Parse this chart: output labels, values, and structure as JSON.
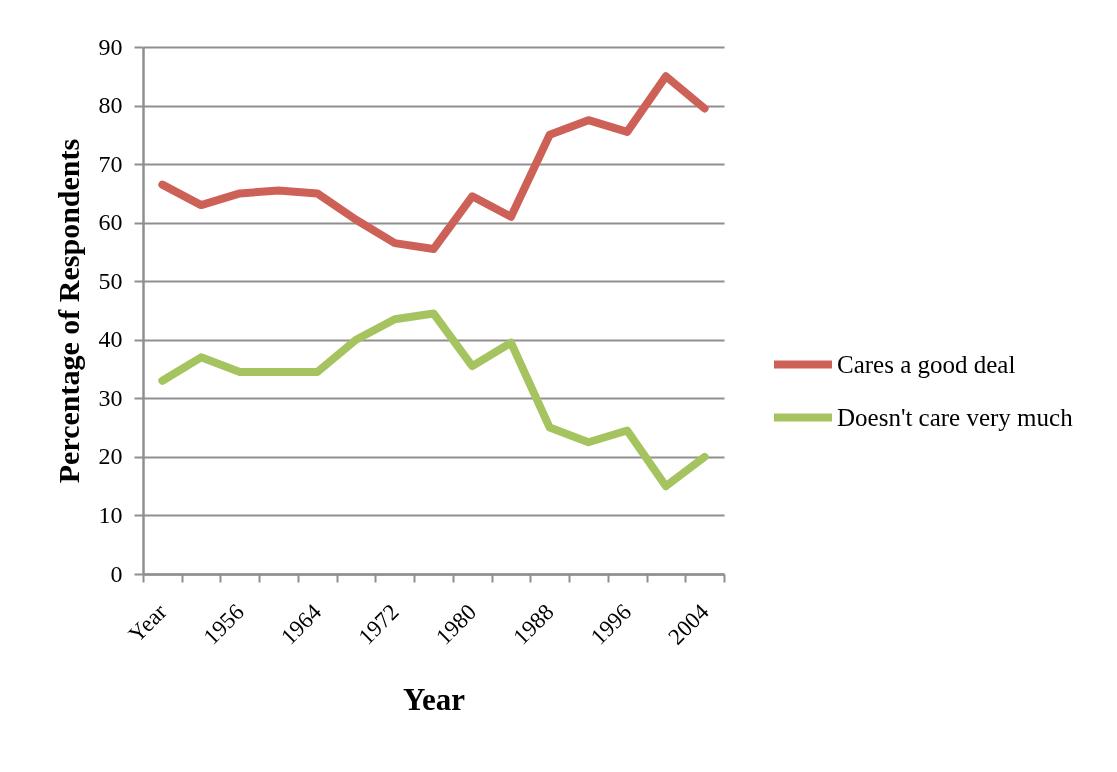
{
  "chart_data": {
    "type": "line",
    "xlabel": "Year",
    "ylabel": "Percentage of Respondents",
    "categories": [
      "Year",
      null,
      "1956",
      null,
      "1964",
      null,
      "1972",
      null,
      "1980",
      null,
      "1988",
      null,
      "1996",
      null,
      "2004"
    ],
    "series": [
      {
        "name": "Cares a good deal",
        "color": "#cd6158",
        "values": [
          66.5,
          63,
          65,
          65.5,
          65,
          60.5,
          56.5,
          55.5,
          64.5,
          61,
          75,
          77.5,
          75.5,
          85,
          79.5
        ]
      },
      {
        "name": "Doesn't care very much",
        "color": "#a5c45f",
        "values": [
          33,
          37,
          34.5,
          34.5,
          34.5,
          40,
          43.5,
          44.5,
          35.5,
          39.5,
          25,
          22.5,
          24.5,
          15,
          20
        ]
      }
    ],
    "ylim": [
      0,
      90
    ],
    "yticks": [
      0,
      10,
      20,
      30,
      40,
      50,
      60,
      70,
      80,
      90
    ],
    "grid": "y",
    "legend": "right",
    "marker": "none",
    "line_style": "solid"
  }
}
